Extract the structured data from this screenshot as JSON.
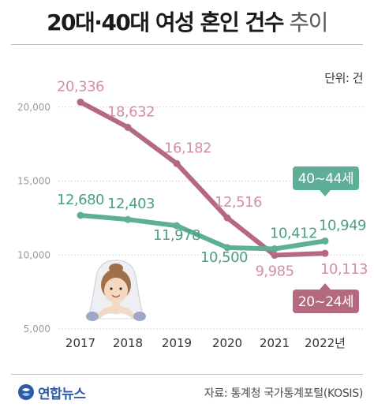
{
  "header": {
    "title_bold": "20대·40대 여성 혼인 건수",
    "title_light": "추이",
    "unit": "단위: 건"
  },
  "footer": {
    "logo_text": "연합뉴스",
    "source": "자료: 통계청 국가통계포털(KOSIS)"
  },
  "chart_data": {
    "type": "line",
    "x": [
      "2017",
      "2018",
      "2019",
      "2020",
      "2021",
      "2022년"
    ],
    "ylim": [
      5000,
      21000
    ],
    "yticks": [
      5000,
      10000,
      15000,
      20000
    ],
    "ytick_labels": [
      "5,000",
      "10,000",
      "15,000",
      "20,000"
    ],
    "grid": true,
    "series": [
      {
        "name": "20~24세",
        "values": [
          20336,
          18632,
          16182,
          12516,
          9985,
          10113
        ],
        "labels": [
          "20,336",
          "18,632",
          "16,182",
          "12,516",
          "9,985",
          "10,113"
        ],
        "color": "#b5697f",
        "label_color": "#d4909f"
      },
      {
        "name": "40~44세",
        "values": [
          12680,
          12403,
          11978,
          10500,
          10412,
          10949
        ],
        "labels": [
          "12,680",
          "12,403",
          "11,978",
          "10,500",
          "10,412",
          "10,949"
        ],
        "color": "#5fae97",
        "label_color": "#4d9e86"
      }
    ]
  }
}
